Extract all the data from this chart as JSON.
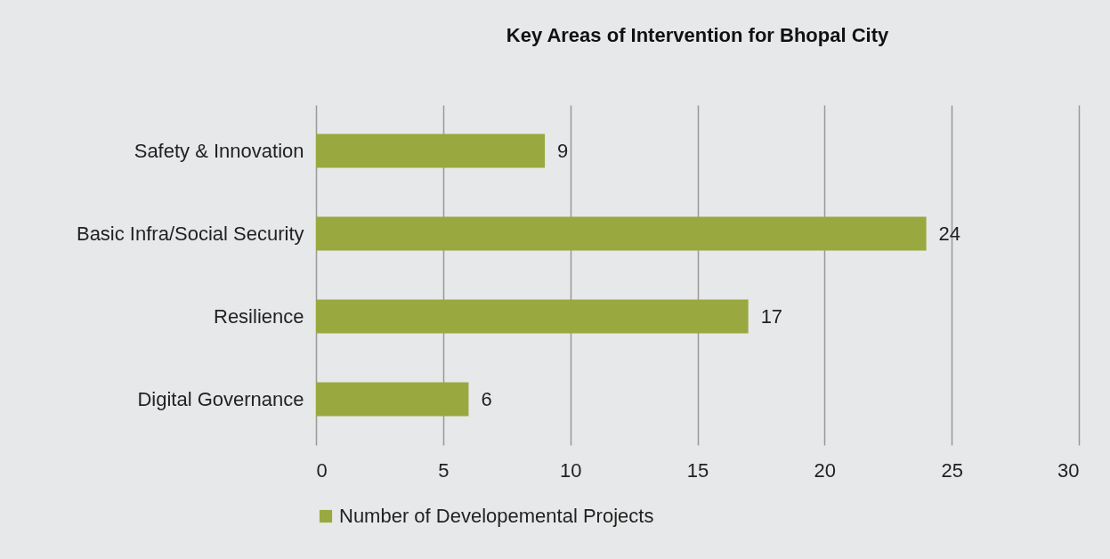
{
  "chart_data": {
    "type": "bar",
    "orientation": "horizontal",
    "title": "Key Areas of Intervention for Bhopal City",
    "categories": [
      "Safety & Innovation",
      "Basic Infra/Social Security",
      "Resilience",
      "Digital Governance"
    ],
    "series": [
      {
        "name": "Number of Developemental Projects",
        "color": "#99a83f",
        "values": [
          9,
          24,
          17,
          6
        ]
      }
    ],
    "xlim": [
      0,
      30
    ],
    "xticks": [
      0,
      5,
      10,
      15,
      20,
      25,
      30
    ],
    "grid": "x",
    "legend": "bottom",
    "data_labels": true
  }
}
